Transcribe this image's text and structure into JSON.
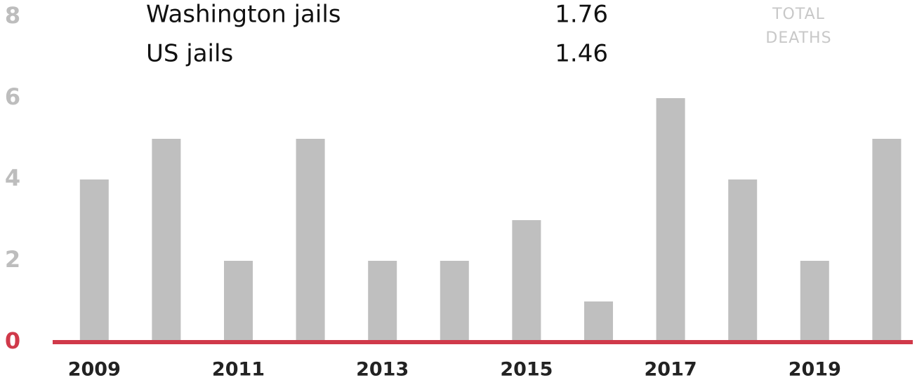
{
  "chart_data": {
    "type": "bar",
    "y_label": "TOTAL DEATHS",
    "comparison": [
      {
        "name": "Washington jails",
        "value": 1.76
      },
      {
        "name": "US jails",
        "value": 1.46
      }
    ],
    "categories": [
      "2009",
      null,
      "2011",
      null,
      "2013",
      null,
      "2015",
      null,
      "2017",
      null,
      "2019",
      null
    ],
    "values": [
      4,
      5,
      2,
      5,
      2,
      2,
      3,
      1,
      6,
      4,
      2,
      5
    ],
    "color": "#bfbfbf",
    "baseline_color": "#d0394a",
    "ylim": [
      0,
      8
    ],
    "yticks": [
      0,
      2,
      4,
      6,
      8
    ],
    "grid": false
  }
}
